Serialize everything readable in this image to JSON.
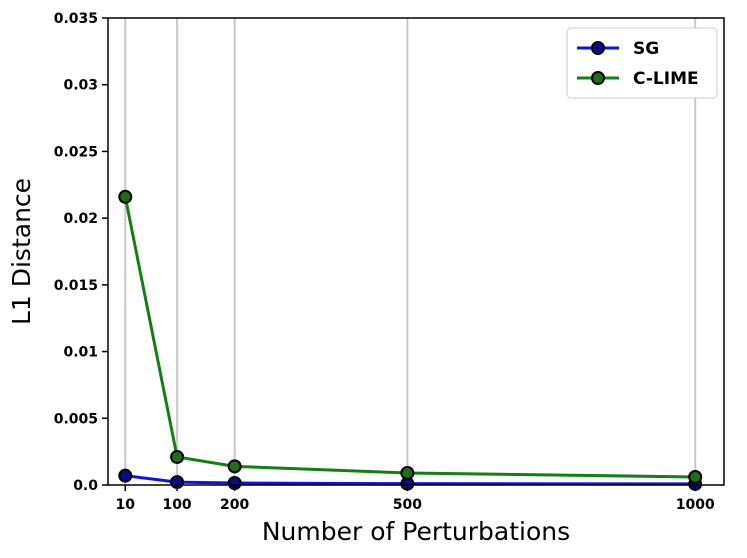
{
  "chart_data": {
    "type": "line",
    "xlabel": "Number of Perturbations",
    "ylabel": "L1 Distance",
    "x": [
      10,
      100,
      200,
      500,
      1000
    ],
    "xticks": [
      "10",
      "100",
      "200",
      "500",
      "1000"
    ],
    "yticks": [
      "0.0",
      "0.005",
      "0.01",
      "0.015",
      "0.02",
      "0.025",
      "0.03",
      "0.035"
    ],
    "ylim": [
      0,
      0.035
    ],
    "grid": true,
    "legend_position": "top-right",
    "series": [
      {
        "name": "SG",
        "color": "#1010ee",
        "marker_color": "#0a0a8a",
        "values": [
          0.0007,
          0.00022,
          0.00015,
          0.0001,
          8e-05
        ]
      },
      {
        "name": "C-LIME",
        "color": "#108010",
        "marker_color": "#1e6e1e",
        "values": [
          0.0216,
          0.0021,
          0.0014,
          0.0009,
          0.0006
        ]
      }
    ]
  }
}
